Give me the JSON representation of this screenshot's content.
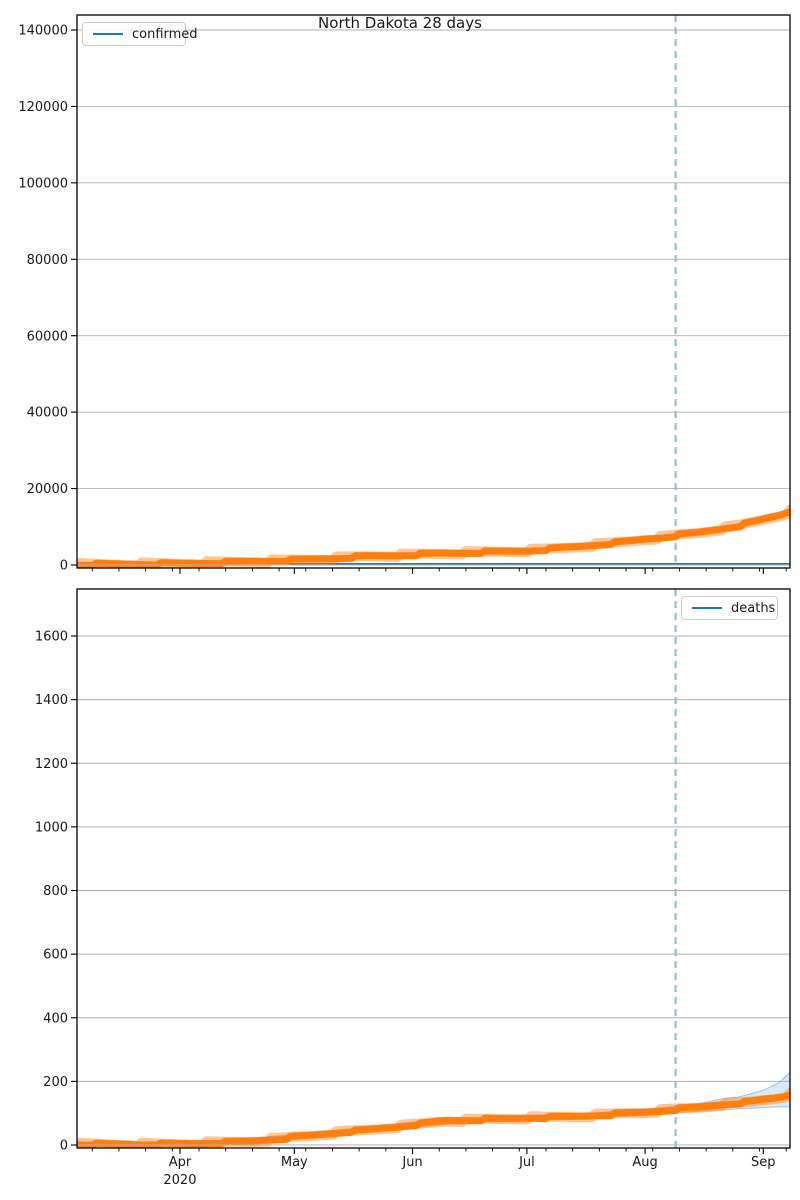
{
  "figure": {
    "title": "North Dakota 28 days",
    "background": "#ffffff"
  },
  "colors": {
    "actual_series": "#ff7f0e",
    "forecast_series": "#1f77b4",
    "vline": "#8fbedc",
    "confidence_band": "#b8d3e8",
    "band_edge": "#9cc1de",
    "grid": "#b0b0b0",
    "spine": "#000000",
    "text": "#1a1a1a"
  },
  "x_axis": {
    "months": [
      {
        "label": "Apr",
        "day": 27
      },
      {
        "label": "May",
        "day": 57
      },
      {
        "label": "Jun",
        "day": 88
      },
      {
        "label": "Jul",
        "day": 118
      },
      {
        "label": "Aug",
        "day": 149
      },
      {
        "label": "Sep",
        "day": 180
      }
    ],
    "year_label": "2020",
    "total_days": 187,
    "minor_tick_start_day": 4,
    "minor_tick_interval_days": 7
  },
  "vline": {
    "day": 157,
    "style": "dashed"
  },
  "chart_data": [
    {
      "type": "line",
      "legend": "confirmed",
      "legend_position": "upper-left",
      "ylabel": "",
      "yticks": [
        0,
        20000,
        40000,
        60000,
        80000,
        100000,
        120000,
        140000
      ],
      "ylim": [
        0,
        146000
      ],
      "grid": true,
      "series": [
        {
          "name": "confirmed-actual",
          "color": "#ff7f0e",
          "style": "thick-markers",
          "points": [
            [
              0,
              100
            ],
            [
              10,
              170
            ],
            [
              20,
              260
            ],
            [
              27,
              350
            ],
            [
              34,
              520
            ],
            [
              41,
              720
            ],
            [
              48,
              950
            ],
            [
              53,
              1100
            ],
            [
              57,
              1250
            ],
            [
              62,
              1500
            ],
            [
              66,
              1650
            ],
            [
              70,
              1900
            ],
            [
              76,
              2250
            ],
            [
              82,
              2450
            ],
            [
              88,
              2650
            ],
            [
              93,
              2900
            ],
            [
              97,
              3050
            ],
            [
              103,
              3200
            ],
            [
              107,
              3350
            ],
            [
              112,
              3500
            ],
            [
              118,
              3700
            ],
            [
              125,
              4250
            ],
            [
              132,
              4850
            ],
            [
              140,
              5650
            ],
            [
              145,
              6200
            ],
            [
              149,
              6750
            ],
            [
              153,
              7150
            ],
            [
              157,
              7700
            ],
            [
              163,
              8450
            ],
            [
              168,
              9300
            ],
            [
              174,
              10350
            ],
            [
              180,
              11900
            ],
            [
              184,
              12950
            ],
            [
              187,
              14000
            ]
          ]
        },
        {
          "name": "confirmed-forecast",
          "color": "#1f77b4",
          "style": "line",
          "points": [
            [
              0,
              250
            ],
            [
              187,
              250
            ]
          ]
        }
      ]
    },
    {
      "type": "line",
      "legend": "deaths",
      "legend_position": "upper-right",
      "ylabel": "",
      "yticks": [
        0,
        200,
        400,
        600,
        800,
        1000,
        1200,
        1400,
        1600
      ],
      "ylim": [
        0,
        1750
      ],
      "grid": true,
      "series": [
        {
          "name": "deaths-actual",
          "color": "#ff7f0e",
          "style": "thick-markers",
          "points": [
            [
              0,
              2
            ],
            [
              10,
              2
            ],
            [
              20,
              2
            ],
            [
              27,
              3
            ],
            [
              34,
              6
            ],
            [
              41,
              9
            ],
            [
              46,
              12
            ],
            [
              50,
              16
            ],
            [
              54,
              20
            ],
            [
              57,
              25
            ],
            [
              61,
              29
            ],
            [
              64,
              33
            ],
            [
              68,
              38
            ],
            [
              71,
              42
            ],
            [
              76,
              47
            ],
            [
              80,
              52
            ],
            [
              84,
              57
            ],
            [
              88,
              63
            ],
            [
              91,
              67
            ],
            [
              93,
              70
            ],
            [
              95,
              74
            ],
            [
              97,
              76
            ],
            [
              100,
              77
            ],
            [
              103,
              78
            ],
            [
              107,
              80
            ],
            [
              112,
              82
            ],
            [
              118,
              85
            ],
            [
              125,
              87
            ],
            [
              132,
              90
            ],
            [
              136,
              93
            ],
            [
              140,
              96
            ],
            [
              145,
              100
            ],
            [
              149,
              103
            ],
            [
              153,
              107
            ],
            [
              157,
              112
            ],
            [
              160,
              115
            ],
            [
              163,
              118
            ],
            [
              166,
              122
            ],
            [
              168,
              126
            ],
            [
              171,
              129
            ],
            [
              174,
              132
            ],
            [
              177,
              136
            ],
            [
              180,
              142
            ],
            [
              183,
              147
            ],
            [
              185,
              152
            ],
            [
              187,
              158
            ]
          ]
        },
        {
          "name": "deaths-forecast",
          "color": "#1f77b4",
          "style": "line",
          "points": [
            [
              0,
              1
            ],
            [
              27,
              3
            ],
            [
              57,
              24
            ],
            [
              88,
              62
            ],
            [
              118,
              84
            ],
            [
              149,
              102
            ],
            [
              157,
              111
            ],
            [
              168,
              124
            ],
            [
              180,
              140
            ],
            [
              187,
              155
            ]
          ]
        }
      ],
      "band": {
        "name": "deaths-confidence-band",
        "upper": [
          [
            0,
            8
          ],
          [
            27,
            10
          ],
          [
            41,
            16
          ],
          [
            57,
            33
          ],
          [
            71,
            50
          ],
          [
            88,
            72
          ],
          [
            97,
            84
          ],
          [
            107,
            88
          ],
          [
            118,
            93
          ],
          [
            132,
            98
          ],
          [
            149,
            112
          ],
          [
            157,
            122
          ],
          [
            163,
            130
          ],
          [
            168,
            142
          ],
          [
            174,
            152
          ],
          [
            180,
            172
          ],
          [
            184,
            195
          ],
          [
            187,
            228
          ]
        ],
        "lower": [
          [
            0,
            0
          ],
          [
            27,
            0
          ],
          [
            41,
            4
          ],
          [
            57,
            18
          ],
          [
            71,
            34
          ],
          [
            88,
            54
          ],
          [
            97,
            67
          ],
          [
            107,
            72
          ],
          [
            118,
            77
          ],
          [
            132,
            82
          ],
          [
            149,
            94
          ],
          [
            157,
            102
          ],
          [
            163,
            106
          ],
          [
            168,
            110
          ],
          [
            174,
            114
          ],
          [
            180,
            118
          ],
          [
            184,
            120
          ],
          [
            187,
            120
          ]
        ]
      }
    }
  ]
}
